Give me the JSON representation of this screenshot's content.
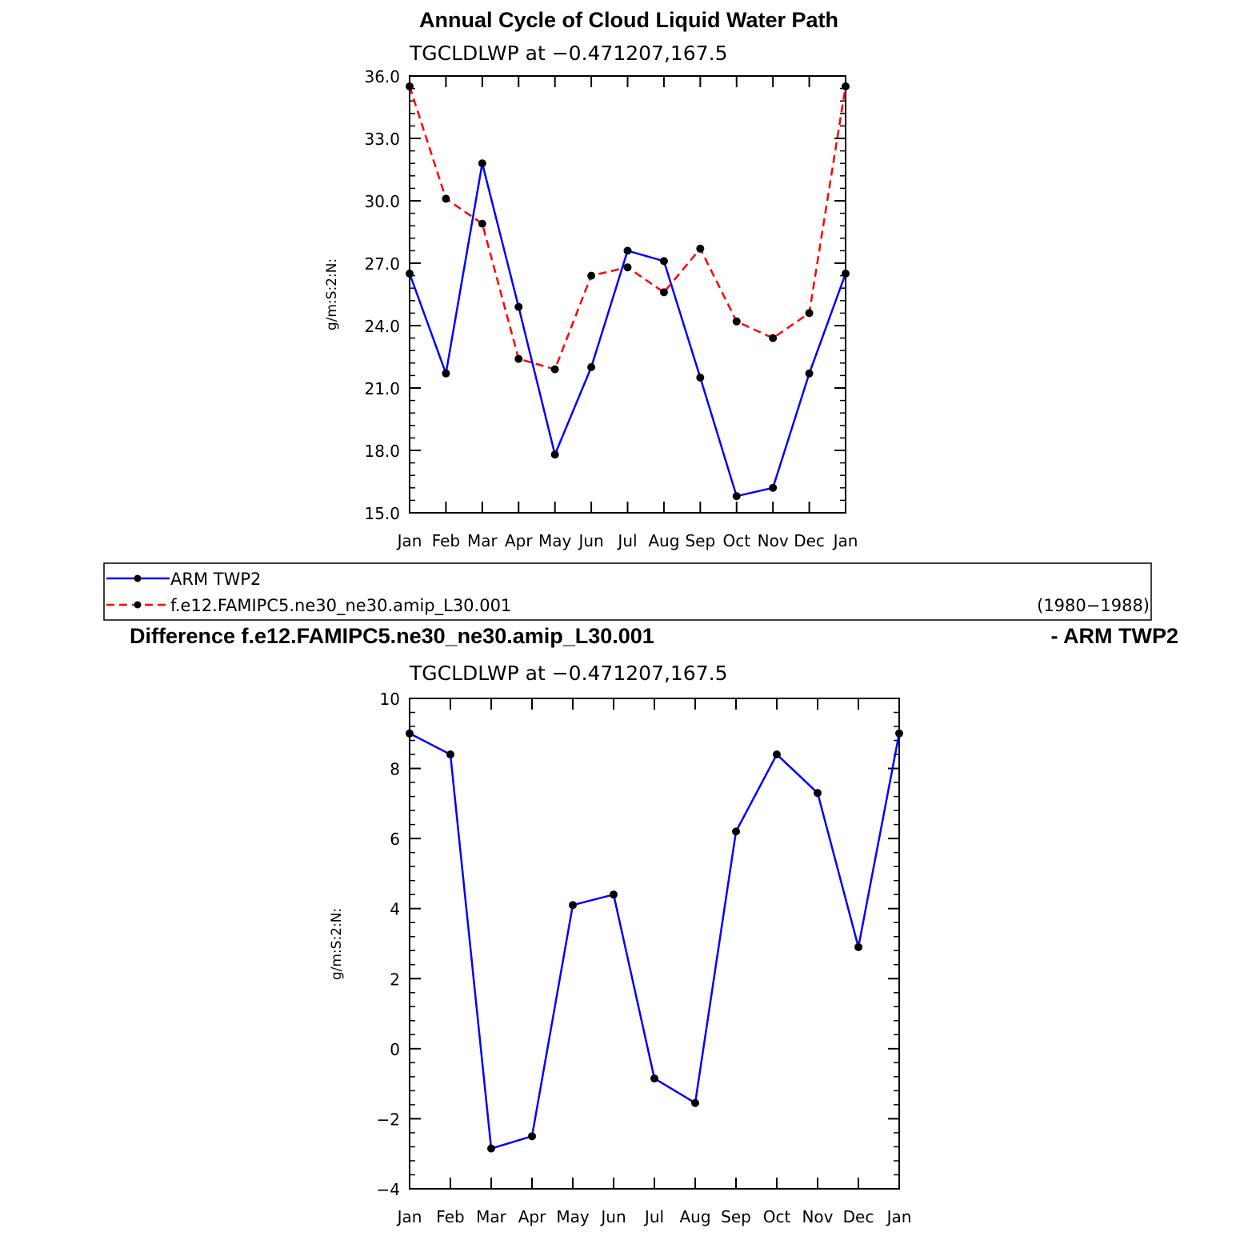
{
  "legend": {
    "entries": [
      {
        "label": "ARM TWP2",
        "color": "#0000ff",
        "dash": "solid"
      },
      {
        "label": "f.e12.FAMIPC5.ne30_ne30.amip_L30.001",
        "color": "#ff0000",
        "dash": "dashed"
      }
    ],
    "years": "(1980−1988)"
  },
  "chart_data": [
    {
      "type": "line",
      "title": "Annual Cycle of Cloud Liquid Water Path",
      "subtitle": "TGCLDLWP at −0.471207,167.5",
      "xlabel": "",
      "ylabel": "g/m:S:2:N:",
      "categories": [
        "Jan",
        "Feb",
        "Mar",
        "Apr",
        "May",
        "Jun",
        "Jul",
        "Aug",
        "Sep",
        "Oct",
        "Nov",
        "Dec",
        "Jan"
      ],
      "ylim": [
        15.0,
        36.0
      ],
      "yticks": [
        15.0,
        18.0,
        21.0,
        24.0,
        27.0,
        30.0,
        33.0,
        36.0
      ],
      "ytick_labels": [
        "15.0",
        "18.0",
        "21.0",
        "24.0",
        "27.0",
        "30.0",
        "33.0",
        "36.0"
      ],
      "series": [
        {
          "name": "ARM TWP2",
          "color": "#0000ff",
          "dash": "solid",
          "values": [
            26.5,
            21.7,
            31.8,
            24.9,
            17.8,
            22.0,
            27.6,
            27.1,
            21.5,
            15.8,
            16.2,
            21.7,
            26.5
          ]
        },
        {
          "name": "f.e12.FAMIPC5.ne30_ne30.amip_L30.001",
          "color": "#ff0000",
          "dash": "dashed",
          "values": [
            35.5,
            30.1,
            28.9,
            22.4,
            21.9,
            26.4,
            26.8,
            25.6,
            27.7,
            24.2,
            23.4,
            24.6,
            35.5
          ]
        }
      ],
      "grid": false
    },
    {
      "type": "line",
      "title": "Difference f.e12.FAMIPC5.ne30_ne30.amip_L30.001",
      "title_right": "- ARM TWP2",
      "subtitle": "TGCLDLWP at −0.471207,167.5",
      "xlabel": "",
      "ylabel": "g/m:S:2:N:",
      "categories": [
        "Jan",
        "Feb",
        "Mar",
        "Apr",
        "May",
        "Jun",
        "Jul",
        "Aug",
        "Sep",
        "Oct",
        "Nov",
        "Dec",
        "Jan"
      ],
      "ylim": [
        -4,
        10
      ],
      "yticks": [
        -4,
        -2,
        0,
        2,
        4,
        6,
        8,
        10
      ],
      "ytick_labels": [
        "−4",
        "−2",
        "0",
        "2",
        "4",
        "6",
        "8",
        "10"
      ],
      "series": [
        {
          "name": "",
          "color": "#0000ff",
          "dash": "solid",
          "values": [
            9.0,
            8.4,
            -2.85,
            -2.5,
            4.1,
            4.4,
            -0.85,
            -1.55,
            6.2,
            8.4,
            7.3,
            2.9,
            9.0
          ]
        }
      ],
      "grid": false
    }
  ]
}
